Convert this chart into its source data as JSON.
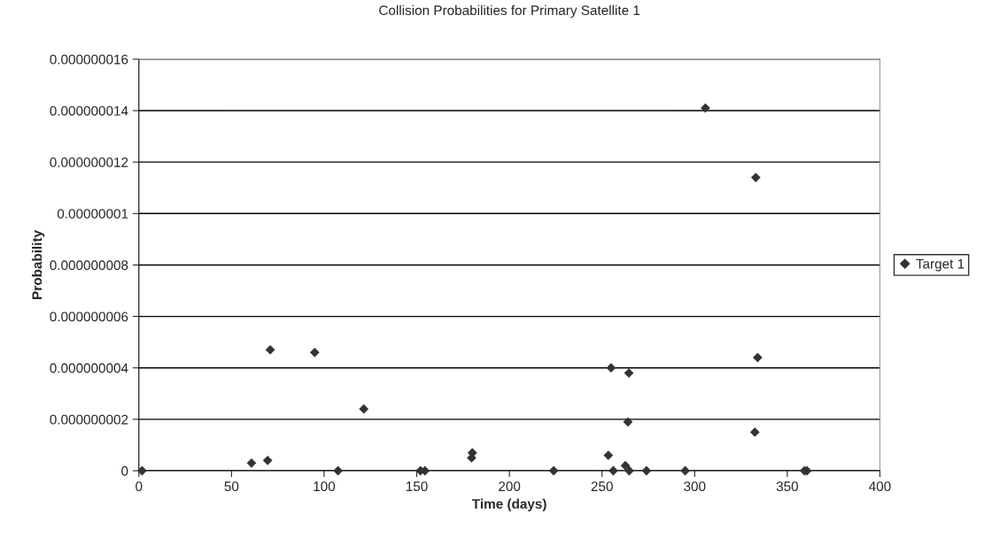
{
  "chart_data": {
    "type": "scatter",
    "title": "Collision Probabilities for Primary Satellite 1",
    "xlabel": "Time (days)",
    "ylabel": "Probability",
    "series": [
      {
        "name": "Target 1",
        "color": "#333333",
        "x": [
          1.7,
          60.8,
          69.5,
          70.9,
          94.9,
          107.5,
          121.4,
          152,
          154.4,
          180,
          179.6,
          223.9,
          254.9,
          253.4,
          256.1,
          264.5,
          264,
          262.6,
          264,
          264.7,
          274,
          294.9,
          305.8,
          333,
          334,
          332.5,
          359.3,
          360.6
        ],
        "values": [
          0,
          3e-10,
          4e-10,
          4.7e-09,
          4.6e-09,
          0,
          2.4e-09,
          0,
          0,
          7e-10,
          5e-10,
          0,
          4e-09,
          6e-10,
          0,
          3.8e-09,
          1.9e-09,
          2e-10,
          null,
          0,
          0,
          0,
          1.41e-08,
          1.14e-08,
          4.4e-09,
          1.5e-09,
          0,
          0
        ]
      }
    ],
    "xlim": [
      0,
      400
    ],
    "xticks": [
      0,
      50,
      100,
      150,
      200,
      250,
      300,
      350,
      400
    ],
    "ylim": [
      0,
      1.6e-08
    ],
    "yticks": [
      0,
      {
        "value": 2e-09,
        "label": "0.000000002"
      },
      {
        "value": 4e-09,
        "label": "0.000000004"
      },
      {
        "value": 6e-09,
        "label": "0.000000006"
      },
      {
        "value": 8e-09,
        "label": "0.000000008"
      },
      {
        "value": 1e-08,
        "label": "0.00000001"
      },
      {
        "value": 1.2e-08,
        "label": "0.000000012"
      },
      {
        "value": 1.4e-08,
        "label": "0.000000014"
      },
      {
        "value": 1.6e-08,
        "label": "0.000000016"
      }
    ],
    "grid": "y",
    "legend": "right",
    "marker": "diamond"
  }
}
